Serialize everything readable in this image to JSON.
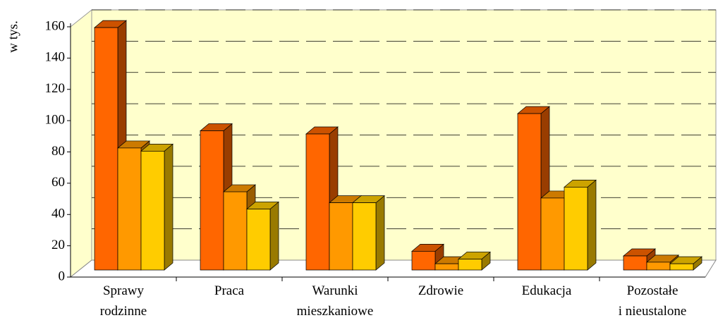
{
  "chart_data": {
    "type": "bar3d",
    "y_label": "w tys.",
    "categories": [
      "Sprawy\nrodzinne",
      "Praca",
      "Warunki\nmieszkaniowe",
      "Zdrowie",
      "Edukacja",
      "Pozostałe\ni nieustalone"
    ],
    "series": [
      {
        "color": "#ff6600",
        "values": [
          155,
          89,
          87,
          12,
          100,
          9
        ]
      },
      {
        "color": "#ff9900",
        "values": [
          78,
          50,
          43,
          4,
          46,
          5
        ]
      },
      {
        "color": "#ffcc00",
        "values": [
          76,
          39,
          43,
          7,
          53,
          4
        ]
      }
    ],
    "ylim": [
      0,
      160
    ],
    "yticks": [
      0,
      20,
      40,
      60,
      80,
      100,
      120,
      140,
      160
    ],
    "grid": true,
    "wall_color": "#ffffcc"
  }
}
